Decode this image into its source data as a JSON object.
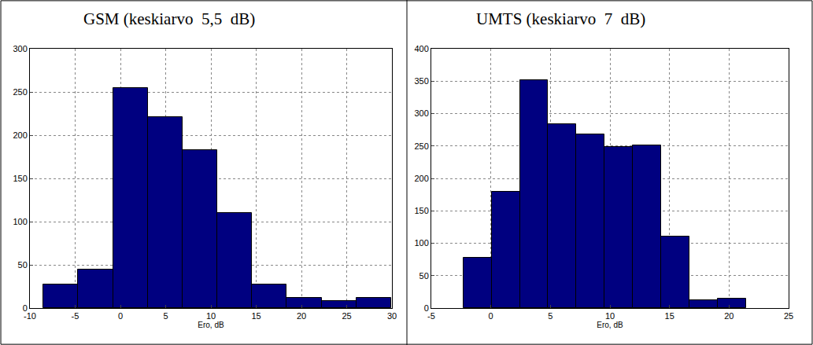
{
  "chart_data": [
    {
      "type": "histogram",
      "title": "GSM (keskiarvo  5,5  dB)",
      "x_label": "Ero, dB",
      "bins": [
        -8.5,
        -4.66,
        -0.82,
        3.02,
        6.86,
        10.7,
        14.54,
        18.38,
        22.22,
        26.06,
        29.9
      ],
      "values": [
        27,
        45,
        255,
        221,
        183,
        110,
        27,
        12,
        8,
        12
      ],
      "color": "#000080",
      "xlim": [
        -10,
        30
      ],
      "xticks": [
        -10,
        -5,
        0,
        5,
        10,
        15,
        20,
        25,
        30
      ],
      "ylim": [
        0,
        300
      ],
      "yticks": [
        0,
        50,
        100,
        150,
        200,
        250,
        300
      ],
      "grid": true
    },
    {
      "type": "histogram",
      "title": "UMTS (keskiarvo  7  dB)",
      "x_label": "Ero, dB",
      "bins": [
        -2.3,
        0.07,
        2.44,
        4.81,
        7.18,
        9.55,
        11.92,
        14.29,
        16.66,
        19.03,
        21.4
      ],
      "values": [
        77,
        180,
        351,
        284,
        268,
        249,
        251,
        110,
        12,
        15
      ],
      "color": "#000080",
      "xlim": [
        -5,
        25
      ],
      "xticks": [
        -5,
        0,
        5,
        10,
        15,
        20,
        25
      ],
      "ylim": [
        0,
        400
      ],
      "yticks": [
        0,
        50,
        100,
        150,
        200,
        250,
        300,
        350,
        400
      ],
      "grid": true
    }
  ]
}
